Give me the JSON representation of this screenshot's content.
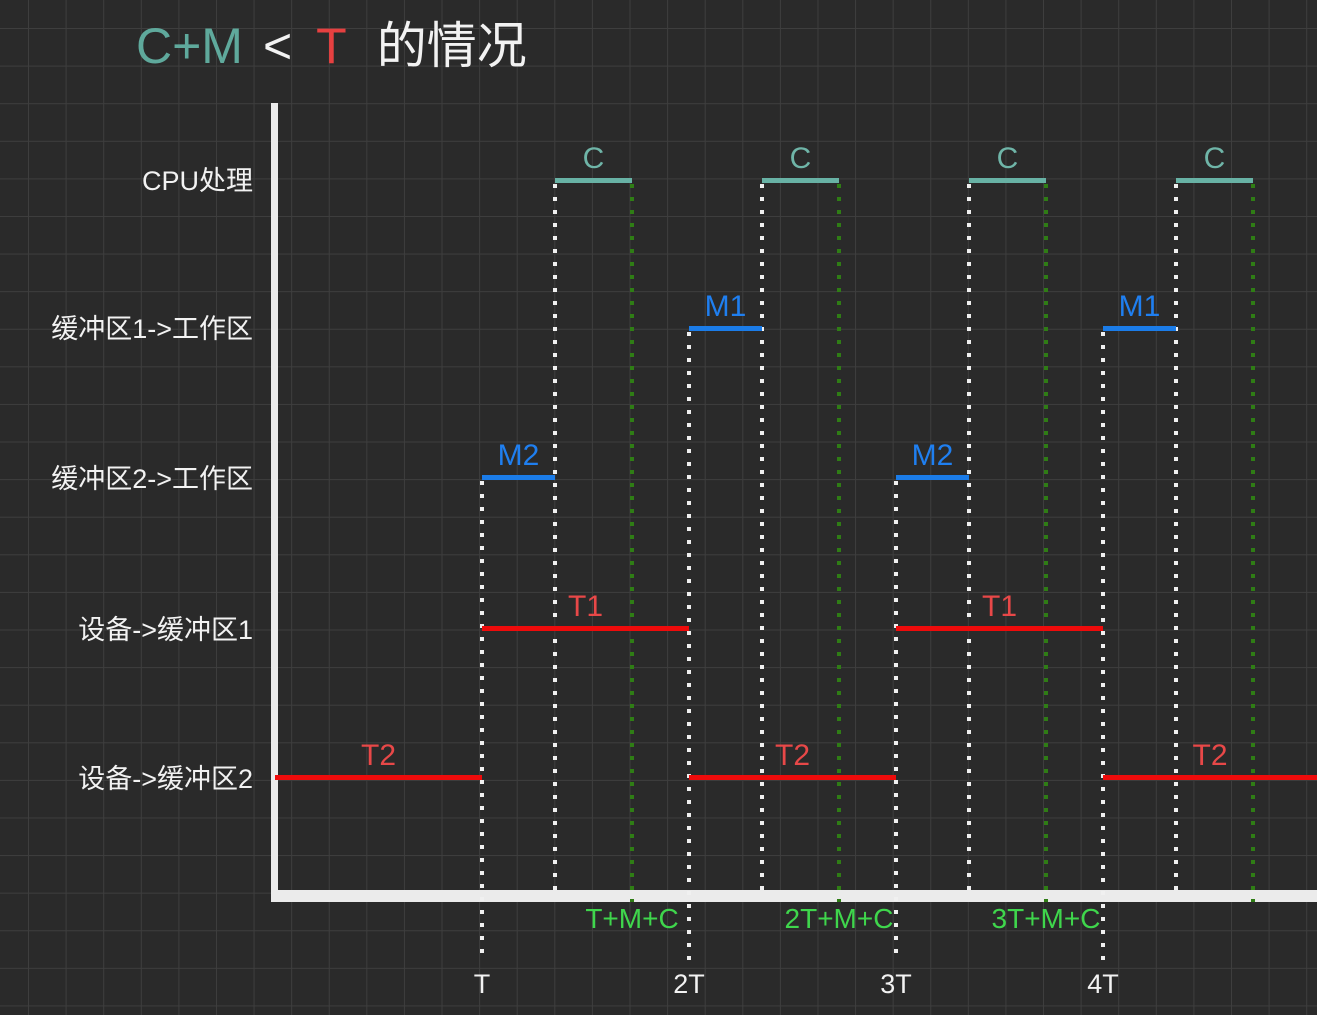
{
  "title": {
    "parts": [
      {
        "text": "C+M",
        "color": "#5fa99c"
      },
      {
        "text": "<",
        "color": "#f2f2f2"
      },
      {
        "text": "T",
        "color": "#e64040"
      },
      {
        "text": "的情况",
        "color": "#f2f2f2"
      }
    ]
  },
  "rows": [
    {
      "id": "cpu",
      "label": "CPU处理"
    },
    {
      "id": "buf1",
      "label": "缓冲区1->工作区"
    },
    {
      "id": "buf2",
      "label": "缓冲区2->工作区"
    },
    {
      "id": "dev1",
      "label": "设备->缓冲区1"
    },
    {
      "id": "dev2",
      "label": "设备->缓冲区2"
    }
  ],
  "chart_data": {
    "type": "timing-diagram",
    "relation": "C+M < T",
    "time_axis_unit": "T",
    "segments": [
      {
        "row": "cpu",
        "start": "T+M",
        "end": "T+M+C",
        "label": "C",
        "color": "teal"
      },
      {
        "row": "cpu",
        "start": "2T+M",
        "end": "2T+M+C",
        "label": "C",
        "color": "teal"
      },
      {
        "row": "cpu",
        "start": "3T+M",
        "end": "3T+M+C",
        "label": "C",
        "color": "teal"
      },
      {
        "row": "cpu",
        "start": "4T+M",
        "end": "4T+M+C",
        "label": "C",
        "color": "teal"
      },
      {
        "row": "buf1",
        "start": "2T",
        "end": "2T+M",
        "label": "M1",
        "color": "blue"
      },
      {
        "row": "buf1",
        "start": "4T",
        "end": "4T+M",
        "label": "M1",
        "color": "blue"
      },
      {
        "row": "buf2",
        "start": "T",
        "end": "T+M",
        "label": "M2",
        "color": "blue"
      },
      {
        "row": "buf2",
        "start": "3T",
        "end": "3T+M",
        "label": "M2",
        "color": "blue"
      },
      {
        "row": "dev1",
        "start": "T",
        "end": "2T",
        "label": "T1",
        "color": "red"
      },
      {
        "row": "dev1",
        "start": "3T",
        "end": "4T",
        "label": "T1",
        "color": "red"
      },
      {
        "row": "dev2",
        "start": "0",
        "end": "T",
        "label": "T2",
        "color": "red"
      },
      {
        "row": "dev2",
        "start": "2T",
        "end": "3T",
        "label": "T2",
        "color": "red"
      },
      {
        "row": "dev2",
        "start": "4T",
        "end": "edge",
        "label": "T2",
        "color": "red"
      }
    ],
    "white_guides": [
      {
        "x": "T",
        "from": "buf2",
        "tick": true
      },
      {
        "x": "T+M",
        "from": "cpu",
        "tick": false
      },
      {
        "x": "2T",
        "from": "buf1",
        "tick": true
      },
      {
        "x": "2T+M",
        "from": "cpu",
        "tick": false
      },
      {
        "x": "3T",
        "from": "buf2",
        "tick": true
      },
      {
        "x": "3T+M",
        "from": "cpu",
        "tick": false
      },
      {
        "x": "4T",
        "from": "buf1",
        "tick": true
      },
      {
        "x": "4T+M",
        "from": "cpu",
        "tick": false
      }
    ],
    "green_guides": [
      "T+M+C",
      "2T+M+C",
      "3T+M+C",
      "4T+M+C"
    ],
    "x_ticks": [
      {
        "x": "T",
        "label": "T"
      },
      {
        "x": "2T",
        "label": "2T"
      },
      {
        "x": "3T",
        "label": "3T"
      },
      {
        "x": "4T",
        "label": "4T"
      }
    ],
    "x_annotations": [
      {
        "x": "T+M+C",
        "label": "T+M+C"
      },
      {
        "x": "2T+M+C",
        "label": "2T+M+C"
      },
      {
        "x": "3T+M+C",
        "label": "3T+M+C"
      }
    ]
  },
  "colors": {
    "background": "#2a2a2a",
    "grid": "#3e3e3e",
    "axis": "#ebebeb",
    "teal": "#68b2a5",
    "blue": "#1b7ce8",
    "red": "#ee0b0b",
    "red_label": "#e84848",
    "green_label": "#3fd64c",
    "green_dot": "#2f7d15",
    "white_dot": "#f0f0f0",
    "text": "#f2f2f2"
  }
}
